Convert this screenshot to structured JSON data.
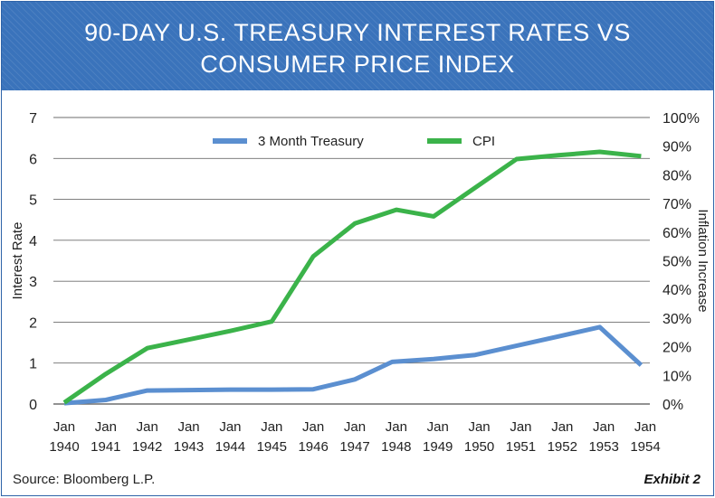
{
  "header": {
    "title_line1": "90-DAY U.S. TREASURY INTEREST RATES VS",
    "title_line2": "CONSUMER PRICE INDEX"
  },
  "footer": {
    "source": "Source: Bloomberg L.P.",
    "exhibit": "Exhibit 2"
  },
  "colors": {
    "banner": "#3a73bb",
    "treasury": "#5b8fd0",
    "cpi": "#3bb34a"
  },
  "chart_data": {
    "type": "line",
    "x": [
      "Jan\n1940",
      "Jan\n1941",
      "Jan\n1942",
      "Jan\n1943",
      "Jan\n1944",
      "Jan\n1945",
      "Jan\n1946",
      "Jan\n1947",
      "Jan\n1948",
      "Jan\n1949",
      "Jan\n1950",
      "Jan\n1951",
      "Jan\n1952",
      "Jan\n1953",
      "Jan\n1954"
    ],
    "ylabel": "Interest Rate",
    "y2label": "Inflation Increase",
    "ylim": [
      0,
      7
    ],
    "y2lim": [
      0,
      100
    ],
    "yticks": [
      0,
      1,
      2,
      3,
      4,
      5,
      6,
      7
    ],
    "y2ticks": [
      "0%",
      "10%",
      "20%",
      "30%",
      "40%",
      "50%",
      "60%",
      "70%",
      "80%",
      "90%",
      "100%"
    ],
    "grid": true,
    "legend": "top-center",
    "series": [
      {
        "name": "3 Month Treasury",
        "axis": "left",
        "color": "#5b8fd0",
        "points": [
          [
            1940.0,
            0.02
          ],
          [
            1941.0,
            0.1
          ],
          [
            1942.0,
            0.33
          ],
          [
            1943.0,
            0.34
          ],
          [
            1944.0,
            0.35
          ],
          [
            1945.0,
            0.35
          ],
          [
            1946.0,
            0.36
          ],
          [
            1947.0,
            0.6
          ],
          [
            1947.9,
            1.03
          ],
          [
            1948.9,
            1.1
          ],
          [
            1949.9,
            1.2
          ],
          [
            1951.9,
            1.65
          ],
          [
            1952.9,
            1.88
          ],
          [
            1953.9,
            0.95
          ]
        ]
      },
      {
        "name": "CPI",
        "axis": "right",
        "color": "#3bb34a",
        "points": [
          [
            1940.0,
            0.5
          ],
          [
            1941.0,
            10.5
          ],
          [
            1942.0,
            19.5
          ],
          [
            1943.0,
            22.5
          ],
          [
            1944.0,
            25.5
          ],
          [
            1945.0,
            28.8
          ],
          [
            1946.0,
            51.5
          ],
          [
            1947.0,
            63.0
          ],
          [
            1948.0,
            67.8
          ],
          [
            1948.9,
            65.5
          ],
          [
            1949.9,
            75.5
          ],
          [
            1950.9,
            85.5
          ],
          [
            1951.9,
            86.8
          ],
          [
            1952.9,
            88.0
          ],
          [
            1953.9,
            86.5
          ]
        ]
      }
    ]
  }
}
